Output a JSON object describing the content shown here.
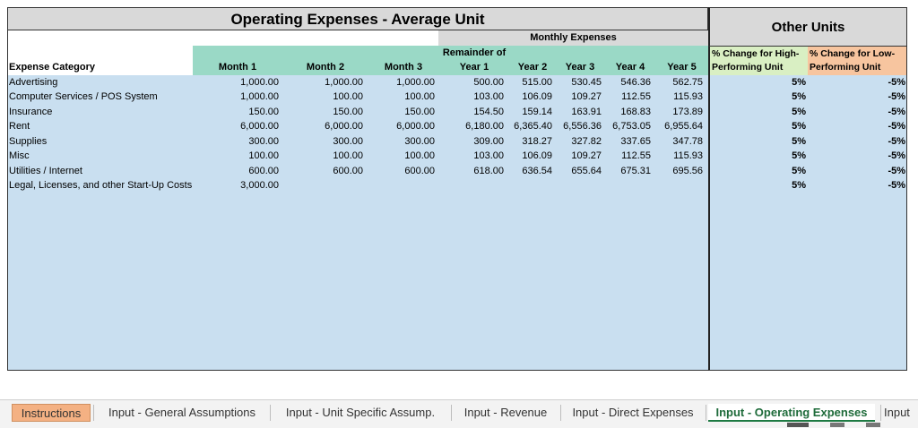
{
  "sheet": {
    "title": "Operating Expenses - Average Unit",
    "other_units_title": "Other Units",
    "monthly_expenses_label": "Monthly Expenses",
    "expense_category_header": "Expense Category",
    "col_headers": [
      "Month 1",
      "Month 2",
      "Month 3",
      "Year 1",
      "Year 2",
      "Year 3",
      "Year 4",
      "Year 5"
    ],
    "remainder_of_label": "Remainder of",
    "high_header_line1": "% Change for High-",
    "high_header_line2": "Performing Unit",
    "low_header_line1": "% Change for Low-",
    "low_header_line2": "Performing Unit",
    "rows": [
      {
        "category": "Advertising",
        "values": [
          "1,000.00",
          "1,000.00",
          "1,000.00",
          "500.00",
          "515.00",
          "530.45",
          "546.36",
          "562.75"
        ],
        "high": "5%",
        "low": "-5%"
      },
      {
        "category": "Computer Services / POS System",
        "values": [
          "1,000.00",
          "100.00",
          "100.00",
          "103.00",
          "106.09",
          "109.27",
          "112.55",
          "115.93"
        ],
        "high": "5%",
        "low": "-5%"
      },
      {
        "category": "Insurance",
        "values": [
          "150.00",
          "150.00",
          "150.00",
          "154.50",
          "159.14",
          "163.91",
          "168.83",
          "173.89"
        ],
        "high": "5%",
        "low": "-5%"
      },
      {
        "category": "Rent",
        "values": [
          "6,000.00",
          "6,000.00",
          "6,000.00",
          "6,180.00",
          "6,365.40",
          "6,556.36",
          "6,753.05",
          "6,955.64"
        ],
        "high": "5%",
        "low": "-5%"
      },
      {
        "category": "Supplies",
        "values": [
          "300.00",
          "300.00",
          "300.00",
          "309.00",
          "318.27",
          "327.82",
          "337.65",
          "347.78"
        ],
        "high": "5%",
        "low": "-5%"
      },
      {
        "category": "Misc",
        "values": [
          "100.00",
          "100.00",
          "100.00",
          "103.00",
          "106.09",
          "109.27",
          "112.55",
          "115.93"
        ],
        "high": "5%",
        "low": "-5%"
      },
      {
        "category": "Utilities / Internet",
        "values": [
          "600.00",
          "600.00",
          "600.00",
          "618.00",
          "636.54",
          "655.64",
          "675.31",
          "695.56"
        ],
        "high": "5%",
        "low": "-5%"
      },
      {
        "category": "Legal, Licenses, and other Start-Up Costs",
        "values": [
          "3,000.00",
          "",
          "",
          "",
          "",
          "",
          "",
          ""
        ],
        "high": "5%",
        "low": "-5%"
      }
    ]
  },
  "tabs": [
    {
      "label": "Instructions"
    },
    {
      "label": "Input - General Assumptions"
    },
    {
      "label": "Input - Unit Specific Assump."
    },
    {
      "label": "Input - Revenue"
    },
    {
      "label": "Input - Direct Expenses"
    },
    {
      "label": "Input - Operating Expenses"
    },
    {
      "label": "Input"
    }
  ],
  "colors": {
    "header_green": "#9ad9c6",
    "body_blue": "#c9dff0",
    "high_green": "#d9efc3",
    "low_orange": "#f7c59f",
    "instructions_tab": "#f4b183",
    "active_tab_text": "#1e6b3a"
  }
}
